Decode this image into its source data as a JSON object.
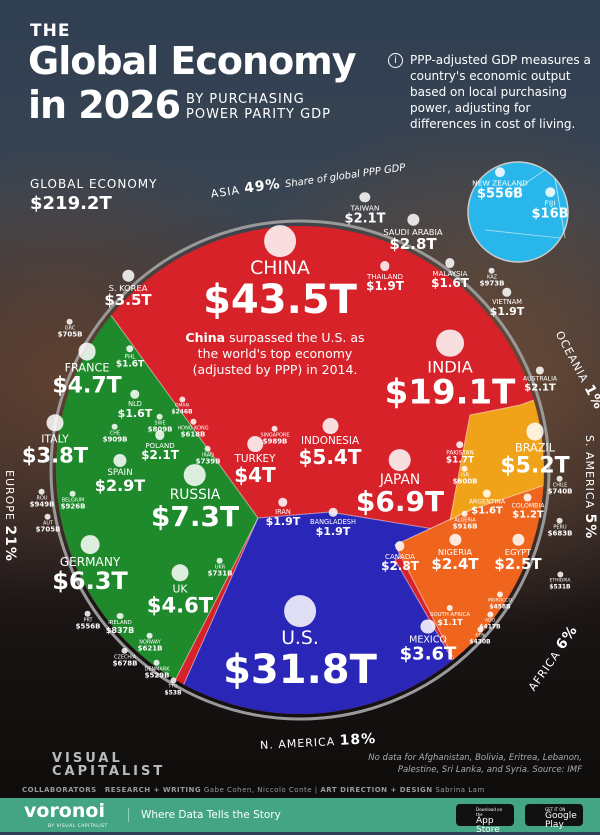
{
  "header": {
    "the": "THE",
    "title_line1": "Global Economy",
    "title_line2": "in 2026",
    "subtitle_line1": "BY PURCHASING",
    "subtitle_line2": "POWER PARITY GDP"
  },
  "info": {
    "icon": "info-icon",
    "symbol": "i",
    "text": "PPP-adjusted GDP measures a country's economic output based on local purchasing power, adjusting for differences in cost of living."
  },
  "global": {
    "label": "GLOBAL ECONOMY",
    "value": "$219.2T"
  },
  "china_note": {
    "bold": "China",
    "text": " surpassed the U.S. as the world's top economy (adjusted by PPP) in 2014."
  },
  "footnote": "No data for Afghanistan, Bolivia, Eritrea, Lebanon, Palestine, Sri Lanka, and Syria. Source: IMF",
  "credits": {
    "logo": "VISUAL CAPITALIST",
    "collaborators": "COLLABORATORS",
    "research_label": "RESEARCH + WRITING",
    "research": "Gabe Cohen, Niccolo Conte",
    "art_label": "ART DIRECTION + DESIGN",
    "art": "Sabrina Lam"
  },
  "footer": {
    "brand": "voronoi",
    "brand_by": "BY VISUAL CAPITALIST",
    "tagline": "Where Data Tells the Story",
    "appstore_small": "Download on the",
    "appstore": "App Store",
    "gplay_small": "GET IT ON",
    "gplay": "Google Play"
  },
  "chart_data": {
    "type": "voronoi-treemap",
    "total": "$219.2T",
    "colors": {
      "Asia": "#d7222a",
      "Europe": "#1f8a2c",
      "N. America": "#2a27b8",
      "Africa": "#f0651e",
      "S. America": "#f0a218",
      "Oceania": "#29b6ea"
    },
    "regions": [
      {
        "name": "ASIA",
        "share": "49%",
        "note": "Share of global PPP GDP"
      },
      {
        "name": "EUROPE",
        "share": "21%"
      },
      {
        "name": "N. AMERICA",
        "share": "18%"
      },
      {
        "name": "AFRICA",
        "share": "6%"
      },
      {
        "name": "S. AMERICA",
        "share": "5%"
      },
      {
        "name": "OCEANIA",
        "share": "1%"
      }
    ],
    "countries": [
      {
        "name": "CHINA",
        "value": "$43.5T",
        "region": "Asia"
      },
      {
        "name": "U.S.",
        "value": "$31.8T",
        "region": "N. America"
      },
      {
        "name": "INDIA",
        "value": "$19.1T",
        "region": "Asia"
      },
      {
        "name": "RUSSIA",
        "value": "$7.3T",
        "region": "Europe"
      },
      {
        "name": "JAPAN",
        "value": "$6.9T",
        "region": "Asia"
      },
      {
        "name": "GERMANY",
        "value": "$6.3T",
        "region": "Europe"
      },
      {
        "name": "INDONESIA",
        "value": "$5.4T",
        "region": "Asia"
      },
      {
        "name": "BRAZIL",
        "value": "$5.2T",
        "region": "S. America"
      },
      {
        "name": "FRANCE",
        "value": "$4.7T",
        "region": "Europe"
      },
      {
        "name": "UK",
        "value": "$4.6T",
        "region": "Europe"
      },
      {
        "name": "TURKEY",
        "value": "$4T",
        "region": "Asia"
      },
      {
        "name": "ITALY",
        "value": "$3.8T",
        "region": "Europe"
      },
      {
        "name": "MEXICO",
        "value": "$3.6T",
        "region": "N. America"
      },
      {
        "name": "S. KOREA",
        "value": "$3.5T",
        "region": "Asia"
      },
      {
        "name": "SPAIN",
        "value": "$2.9T",
        "region": "Europe"
      },
      {
        "name": "SAUDI ARABIA",
        "value": "$2.8T",
        "region": "Asia"
      },
      {
        "name": "CANADA",
        "value": "$2.8T",
        "region": "N. America"
      },
      {
        "name": "EGYPT",
        "value": "$2.5T",
        "region": "Africa"
      },
      {
        "name": "NIGERIA",
        "value": "$2.4T",
        "region": "Africa"
      },
      {
        "name": "TAIWAN",
        "value": "$2.1T",
        "region": "Asia"
      },
      {
        "name": "POLAND",
        "value": "$2.1T",
        "region": "Europe"
      },
      {
        "name": "AUSTRALIA",
        "value": "$2.1T",
        "region": "Oceania"
      },
      {
        "name": "THAILAND",
        "value": "$1.9T",
        "region": "Asia"
      },
      {
        "name": "VIETNAM",
        "value": "$1.9T",
        "region": "Asia"
      },
      {
        "name": "IRAN",
        "value": "$1.9T",
        "region": "Asia"
      },
      {
        "name": "BANGLADESH",
        "value": "$1.9T",
        "region": "Asia"
      },
      {
        "name": "PAKISTAN",
        "value": "$1.7T",
        "region": "Asia"
      },
      {
        "name": "MALAYSIA",
        "value": "$1.6T",
        "region": "Asia"
      },
      {
        "name": "NLD",
        "value": "$1.6T",
        "region": "Europe"
      },
      {
        "name": "PHL",
        "value": "$1.6T",
        "region": "Asia"
      },
      {
        "name": "ARGENTINA",
        "value": "$1.6T",
        "region": "S. America"
      },
      {
        "name": "COLOMBIA",
        "value": "$1.2T",
        "region": "S. America"
      },
      {
        "name": "SOUTH AFRICA",
        "value": "$1.1T",
        "region": "Africa"
      },
      {
        "name": "SINGAPORE",
        "value": "$989B",
        "region": "Asia"
      },
      {
        "name": "KAZ",
        "value": "$973B",
        "region": "Asia"
      },
      {
        "name": "ROU",
        "value": "$949B",
        "region": "Europe"
      },
      {
        "name": "BELGIUM",
        "value": "$926B",
        "region": "Europe"
      },
      {
        "name": "ALGERIA",
        "value": "$916B",
        "region": "Africa"
      },
      {
        "name": "CHE",
        "value": "$909B",
        "region": "Europe"
      },
      {
        "name": "IRELAND",
        "value": "$837B",
        "region": "Europe"
      },
      {
        "name": "SWE",
        "value": "$809B",
        "region": "Europe"
      },
      {
        "name": "CHILE",
        "value": "$740B",
        "region": "S. America"
      },
      {
        "name": "IRAQ",
        "value": "$739B",
        "region": "Asia"
      },
      {
        "name": "UKR",
        "value": "$731B",
        "region": "Europe"
      },
      {
        "name": "AUT",
        "value": "$705B",
        "region": "Europe"
      },
      {
        "name": "GRC",
        "value": "$705B",
        "region": "Europe"
      },
      {
        "name": "PERU",
        "value": "$683B",
        "region": "S. America"
      },
      {
        "name": "CZECHIA",
        "value": "$678B",
        "region": "Europe"
      },
      {
        "name": "NORWAY",
        "value": "$621B",
        "region": "Europe"
      },
      {
        "name": "HONG KONG",
        "value": "$618B",
        "region": "Asia"
      },
      {
        "name": "ISR",
        "value": "$600B",
        "region": "Asia"
      },
      {
        "name": "NEW ZEALAND",
        "value": "$556B",
        "region": "Oceania"
      },
      {
        "name": "PRT",
        "value": "$556B",
        "region": "Europe"
      },
      {
        "name": "ETHIOPIA",
        "value": "$531B",
        "region": "Africa"
      },
      {
        "name": "DENMARK",
        "value": "$529B",
        "region": "Europe"
      },
      {
        "name": "MOROCCO",
        "value": "$458B",
        "region": "Africa"
      },
      {
        "name": "KEN",
        "value": "$430B",
        "region": "Africa"
      },
      {
        "name": "AGO",
        "value": "$417B",
        "region": "Africa"
      },
      {
        "name": "OMAN",
        "value": "$246B",
        "region": "Asia"
      },
      {
        "name": "TTO",
        "value": "$53B",
        "region": "N. America"
      },
      {
        "name": "FIJI",
        "value": "$16B",
        "region": "Oceania"
      }
    ]
  }
}
